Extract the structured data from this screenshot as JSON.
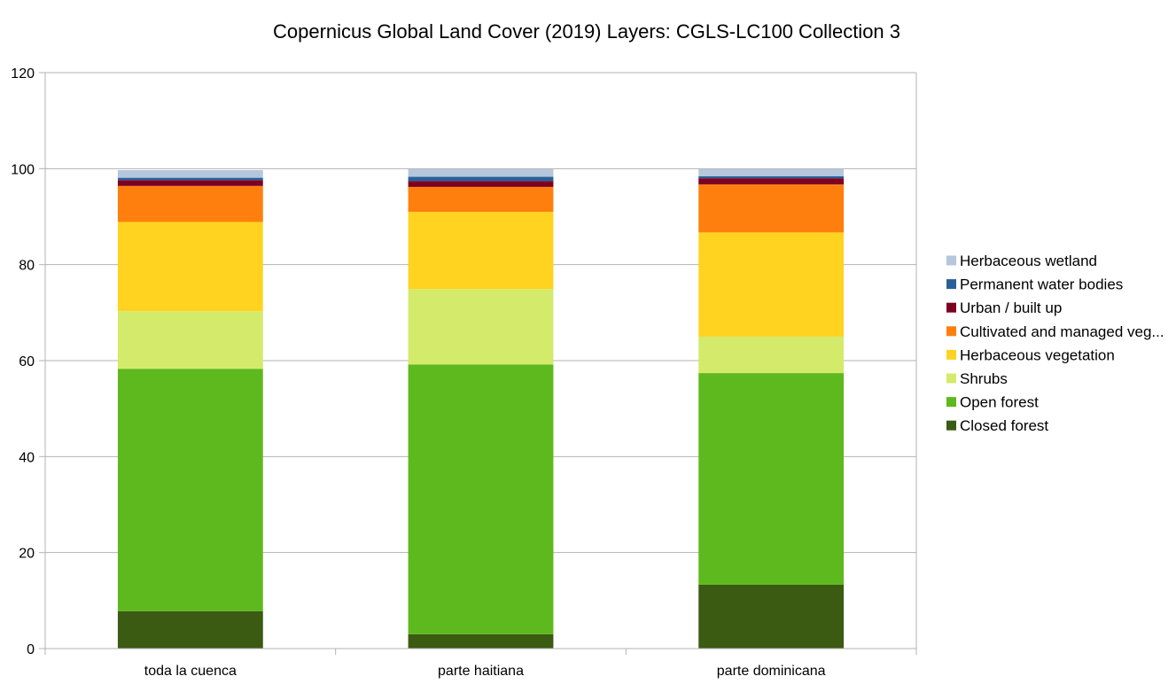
{
  "chart_data": {
    "type": "bar",
    "stacked": true,
    "title": "Copernicus Global Land Cover (2019) Layers: CGLS-LC100 Collection 3",
    "xlabel": "",
    "ylabel": "",
    "ylim": [
      0,
      120
    ],
    "yticks": [
      "0",
      "20",
      "40",
      "60",
      "80",
      "100",
      "120"
    ],
    "grid": true,
    "legend_position": "right",
    "categories": [
      "toda la cuenca",
      "parte haitiana",
      "parte dominicana"
    ],
    "series": [
      {
        "name": "Closed forest",
        "color": "#3b5a12",
        "values": [
          7.8,
          3.0,
          13.3
        ]
      },
      {
        "name": "Open forest",
        "color": "#5eb91e",
        "values": [
          50.5,
          56.2,
          44.1
        ]
      },
      {
        "name": "Shrubs",
        "color": "#d4ea6b",
        "values": [
          12.0,
          15.7,
          7.6
        ]
      },
      {
        "name": "Herbaceous vegetation",
        "color": "#ffd320",
        "values": [
          18.6,
          16.1,
          21.7
        ]
      },
      {
        "name": "Cultivated and managed veg...",
        "color": "#ff7f0e",
        "values": [
          7.5,
          5.2,
          10.0
        ]
      },
      {
        "name": "Urban / built up",
        "color": "#7e0021",
        "values": [
          1.2,
          1.2,
          1.3
        ]
      },
      {
        "name": "Permanent water bodies",
        "color": "#2a6099",
        "values": [
          0.5,
          0.9,
          0.4
        ]
      },
      {
        "name": "Herbaceous wetland",
        "color": "#b4c7dc",
        "values": [
          1.6,
          1.6,
          1.5
        ]
      }
    ]
  }
}
